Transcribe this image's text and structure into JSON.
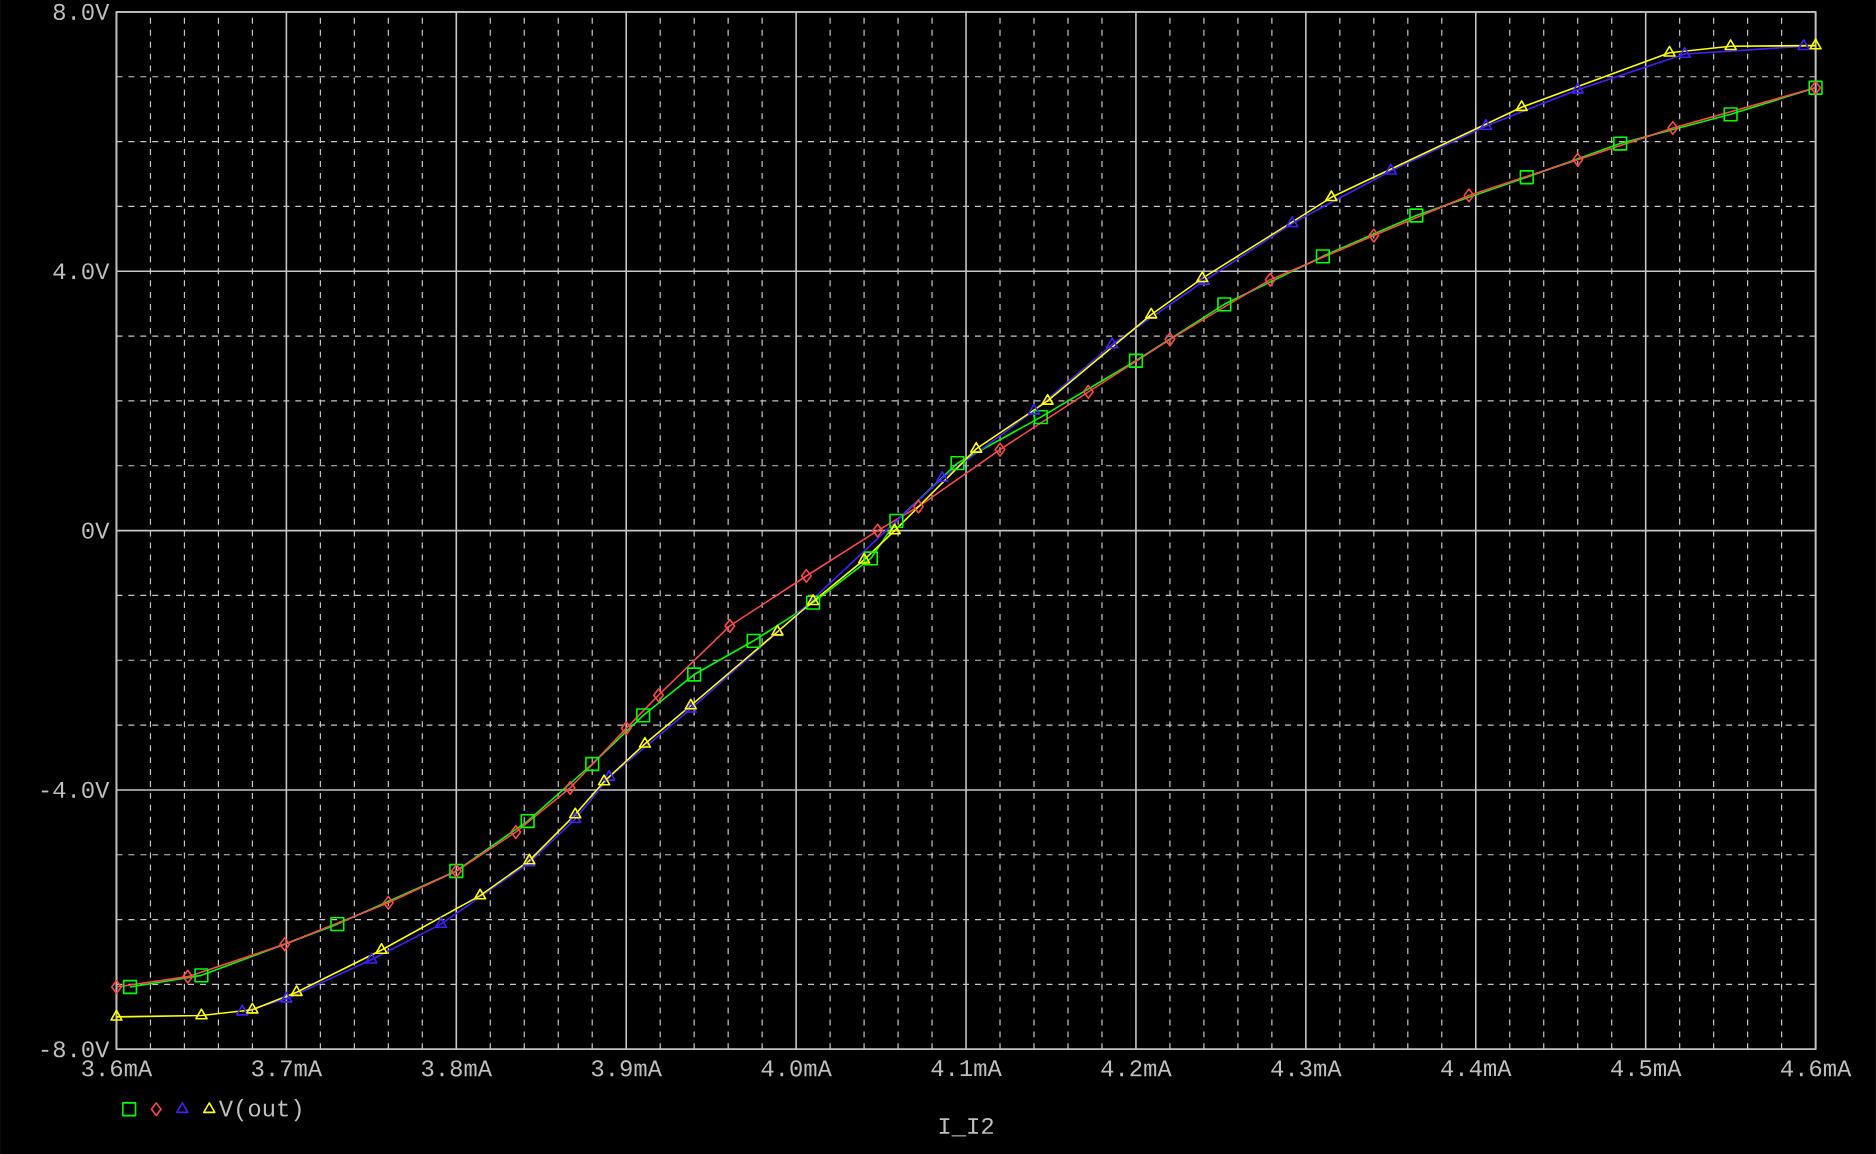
{
  "chart_data": {
    "type": "line",
    "xlabel": "I_I2",
    "xlim": [
      3.6,
      4.6
    ],
    "ylim": [
      -8,
      8
    ],
    "xticks": [
      {
        "value": 3.6,
        "label": "3.6mA"
      },
      {
        "value": 3.7,
        "label": "3.7mA"
      },
      {
        "value": 3.8,
        "label": "3.8mA"
      },
      {
        "value": 3.9,
        "label": "3.9mA"
      },
      {
        "value": 4.0,
        "label": "4.0mA"
      },
      {
        "value": 4.1,
        "label": "4.1mA"
      },
      {
        "value": 4.2,
        "label": "4.2mA"
      },
      {
        "value": 4.3,
        "label": "4.3mA"
      },
      {
        "value": 4.4,
        "label": "4.4mA"
      },
      {
        "value": 4.5,
        "label": "4.5mA"
      },
      {
        "value": 4.6,
        "label": "4.6mA"
      }
    ],
    "yticks": [
      {
        "value": -8,
        "label": "-8.0V"
      },
      {
        "value": -4,
        "label": "-4.0V"
      },
      {
        "value": 0,
        "label": "0V"
      },
      {
        "value": 4,
        "label": "4.0V"
      },
      {
        "value": 8,
        "label": "8.0V"
      }
    ],
    "grid": true,
    "legend": "bottom left",
    "line_style": "solid",
    "series": [
      {
        "color": "#00ff00",
        "marker": "square",
        "x": [
          3.608,
          3.65,
          3.73,
          3.8,
          3.842,
          3.88,
          3.91,
          3.94,
          3.975,
          4.01,
          4.044,
          4.059,
          4.095,
          4.144,
          4.2,
          4.252,
          4.31,
          4.365,
          4.43,
          4.485,
          4.55,
          4.6
        ],
        "values": [
          -7.04,
          -6.86,
          -6.07,
          -5.25,
          -4.48,
          -3.6,
          -2.85,
          -2.22,
          -1.7,
          -1.11,
          -0.43,
          0.15,
          1.04,
          1.75,
          2.62,
          3.49,
          4.23,
          4.86,
          5.45,
          5.97,
          6.42,
          6.83
        ]
      },
      {
        "color": "#ff4848",
        "marker": "diamond",
        "x": [
          3.6,
          3.642,
          3.699,
          3.76,
          3.8,
          3.835,
          3.867,
          3.9,
          3.919,
          3.961,
          4.006,
          4.048,
          4.072,
          4.12,
          4.172,
          4.22,
          4.279,
          4.34,
          4.396,
          4.46,
          4.516,
          4.6
        ],
        "values": [
          -7.04,
          -6.88,
          -6.38,
          -5.74,
          -5.25,
          -4.65,
          -3.97,
          -3.05,
          -2.54,
          -1.47,
          -0.7,
          0.0,
          0.37,
          1.25,
          2.14,
          2.95,
          3.87,
          4.55,
          5.17,
          5.72,
          6.21,
          6.83
        ]
      },
      {
        "color": "#4020ff",
        "marker": "triangle",
        "x": [
          3.674,
          3.7,
          3.75,
          3.791,
          3.843,
          3.87,
          3.89,
          3.938,
          3.989,
          4.086,
          4.14,
          4.186,
          4.24,
          4.292,
          4.35,
          4.406,
          4.46,
          4.523,
          4.593
        ],
        "values": [
          -7.42,
          -7.22,
          -6.62,
          -6.07,
          -5.12,
          -4.45,
          -3.8,
          -2.75,
          -1.57,
          0.81,
          1.85,
          2.87,
          3.85,
          4.74,
          5.55,
          6.24,
          6.8,
          7.35,
          7.47
        ]
      },
      {
        "name": "V(out)",
        "color": "#ffff00",
        "marker": "triangle",
        "x": [
          3.6,
          3.65,
          3.68,
          3.706,
          3.756,
          3.814,
          3.843,
          3.87,
          3.887,
          3.911,
          3.938,
          3.989,
          4.01,
          4.04,
          4.058,
          4.106,
          4.148,
          4.209,
          4.239,
          4.315,
          4.427,
          4.514,
          4.55,
          4.6
        ],
        "values": [
          -7.5,
          -7.48,
          -7.39,
          -7.12,
          -6.47,
          -5.63,
          -5.09,
          -4.38,
          -3.87,
          -3.29,
          -2.7,
          -1.56,
          -1.09,
          -0.45,
          0.0,
          1.26,
          2.0,
          3.33,
          3.89,
          5.14,
          6.53,
          7.37,
          7.47,
          7.48
        ]
      }
    ]
  }
}
